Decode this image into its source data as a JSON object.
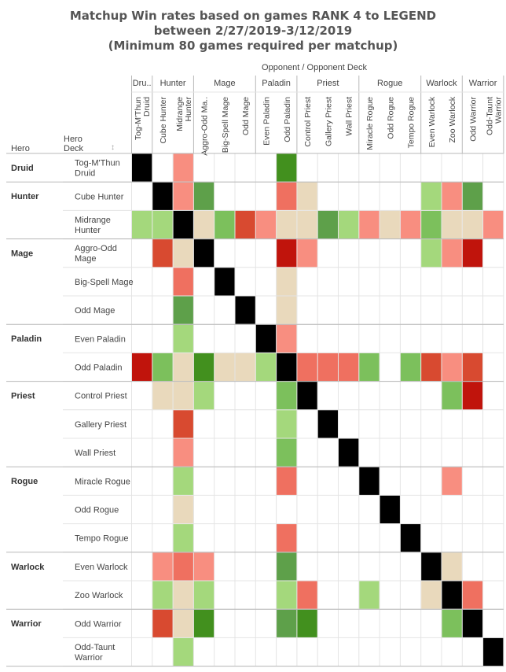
{
  "chart_data": {
    "type": "heatmap",
    "title_lines": [
      "Matchup Win rates based on games RANK 4 to LEGEND",
      "between 2/27/2019-3/12/2019",
      "(Minimum 80 games required per matchup)"
    ],
    "column_axis_title": "Opponent  /  Opponent Deck",
    "row_header_hero": "Hero",
    "row_header_deck": "Hero\nDeck",
    "sort_indicator": "↕",
    "column_classes": [
      {
        "label": "Dru..",
        "span": 1
      },
      {
        "label": "Hunter",
        "span": 2
      },
      {
        "label": "Mage",
        "span": 3
      },
      {
        "label": "Paladin",
        "span": 2
      },
      {
        "label": "Priest",
        "span": 3
      },
      {
        "label": "Rogue",
        "span": 3
      },
      {
        "label": "Warlock",
        "span": 2
      },
      {
        "label": "Warrior",
        "span": 2
      }
    ],
    "columns": [
      "Tog-M'Thun\nDruid",
      "Cube Hunter",
      "Midrange\nHunter",
      "Aggro-Odd Ma..",
      "Big-Spell Mage",
      "Odd Mage",
      "Even Paladin",
      "Odd Paladin",
      "Control Priest",
      "Gallery Priest",
      "Wall Priest",
      "Miracle Rogue",
      "Odd Rogue",
      "Tempo Rogue",
      "Even Warlock",
      "Zoo Warlock",
      "Odd Warrior",
      "Odd-Taunt\nWarrior"
    ],
    "row_groups": [
      {
        "hero": "Druid",
        "rows": 1
      },
      {
        "hero": "Hunter",
        "rows": 2
      },
      {
        "hero": "Mage",
        "rows": 3
      },
      {
        "hero": "Paladin",
        "rows": 2
      },
      {
        "hero": "Priest",
        "rows": 3
      },
      {
        "hero": "Rogue",
        "rows": 3
      },
      {
        "hero": "Warlock",
        "rows": 2
      },
      {
        "hero": "Warrior",
        "rows": 2
      }
    ],
    "rows": [
      "Tog-M'Thun\nDruid",
      "Cube Hunter",
      "Midrange\nHunter",
      "Aggro-Odd\nMage",
      "Big-Spell Mage",
      "Odd Mage",
      "Even Paladin",
      "Odd Paladin",
      "Control Priest",
      "Gallery Priest",
      "Wall Priest",
      "Miracle Rogue",
      "Odd Rogue",
      "Tempo Rogue",
      "Even Warlock",
      "Zoo Warlock",
      "Odd Warrior",
      "Odd-Taunt\nWarrior"
    ],
    "color_legend": {
      "X": "#000000",
      "DR": "#c0140c",
      "R": "#d84a30",
      "LR": "#ef7060",
      "P": "#f88e80",
      "N": "#e9d9bc",
      "LG": "#a4d87c",
      "G": "#7cc05c",
      "MG": "#5ea04a",
      "DG": "#42901e"
    },
    "matrix": [
      [
        "X",
        "",
        "P",
        "",
        "",
        "",
        "",
        "DG",
        "",
        "",
        "",
        "",
        "",
        "",
        "",
        "",
        "",
        ""
      ],
      [
        "",
        "X",
        "P",
        "MG",
        "",
        "",
        "",
        "LR",
        "N",
        "",
        "",
        "",
        "",
        "",
        "LG",
        "P",
        "MG",
        ""
      ],
      [
        "LG",
        "LG",
        "X",
        "N",
        "G",
        "R",
        "P",
        "N",
        "N",
        "MG",
        "LG",
        "P",
        "N",
        "P",
        "G",
        "N",
        "N",
        "P"
      ],
      [
        "",
        "R",
        "N",
        "X",
        "",
        "",
        "",
        "DR",
        "P",
        "",
        "",
        "",
        "",
        "",
        "LG",
        "P",
        "DR",
        ""
      ],
      [
        "",
        "",
        "LR",
        "",
        "X",
        "",
        "",
        "N",
        "",
        "",
        "",
        "",
        "",
        "",
        "",
        "",
        "",
        ""
      ],
      [
        "",
        "",
        "MG",
        "",
        "",
        "X",
        "",
        "N",
        "",
        "",
        "",
        "",
        "",
        "",
        "",
        "",
        "",
        ""
      ],
      [
        "",
        "",
        "LG",
        "",
        "",
        "",
        "X",
        "P",
        "",
        "",
        "",
        "",
        "",
        "",
        "",
        "",
        "",
        ""
      ],
      [
        "DR",
        "G",
        "N",
        "DG",
        "N",
        "N",
        "LG",
        "X",
        "LR",
        "LR",
        "LR",
        "G",
        "",
        "G",
        "R",
        "P",
        "R",
        ""
      ],
      [
        "",
        "N",
        "N",
        "LG",
        "",
        "",
        "",
        "G",
        "X",
        "",
        "",
        "",
        "",
        "",
        "",
        "G",
        "DR",
        ""
      ],
      [
        "",
        "",
        "R",
        "",
        "",
        "",
        "",
        "LG",
        "",
        "X",
        "",
        "",
        "",
        "",
        "",
        "",
        "",
        ""
      ],
      [
        "",
        "",
        "P",
        "",
        "",
        "",
        "",
        "G",
        "",
        "",
        "X",
        "",
        "",
        "",
        "",
        "",
        "",
        ""
      ],
      [
        "",
        "",
        "LG",
        "",
        "",
        "",
        "",
        "LR",
        "",
        "",
        "",
        "X",
        "",
        "",
        "",
        "P",
        "",
        ""
      ],
      [
        "",
        "",
        "N",
        "",
        "",
        "",
        "",
        "",
        "",
        "",
        "",
        "",
        "X",
        "",
        "",
        "",
        "",
        ""
      ],
      [
        "",
        "",
        "LG",
        "",
        "",
        "",
        "",
        "LR",
        "",
        "",
        "",
        "",
        "",
        "X",
        "",
        "",
        "",
        ""
      ],
      [
        "",
        "P",
        "LR",
        "P",
        "",
        "",
        "",
        "MG",
        "",
        "",
        "",
        "",
        "",
        "",
        "X",
        "N",
        "",
        ""
      ],
      [
        "",
        "LG",
        "N",
        "LG",
        "",
        "",
        "",
        "LG",
        "LR",
        "",
        "",
        "LG",
        "",
        "",
        "N",
        "X",
        "LR",
        ""
      ],
      [
        "",
        "R",
        "N",
        "DG",
        "",
        "",
        "",
        "MG",
        "DG",
        "",
        "",
        "",
        "",
        "",
        "",
        "G",
        "X",
        ""
      ],
      [
        "",
        "",
        "LG",
        "",
        "",
        "",
        "",
        "",
        "",
        "",
        "",
        "",
        "",
        "",
        "",
        "",
        "",
        "X"
      ]
    ]
  }
}
